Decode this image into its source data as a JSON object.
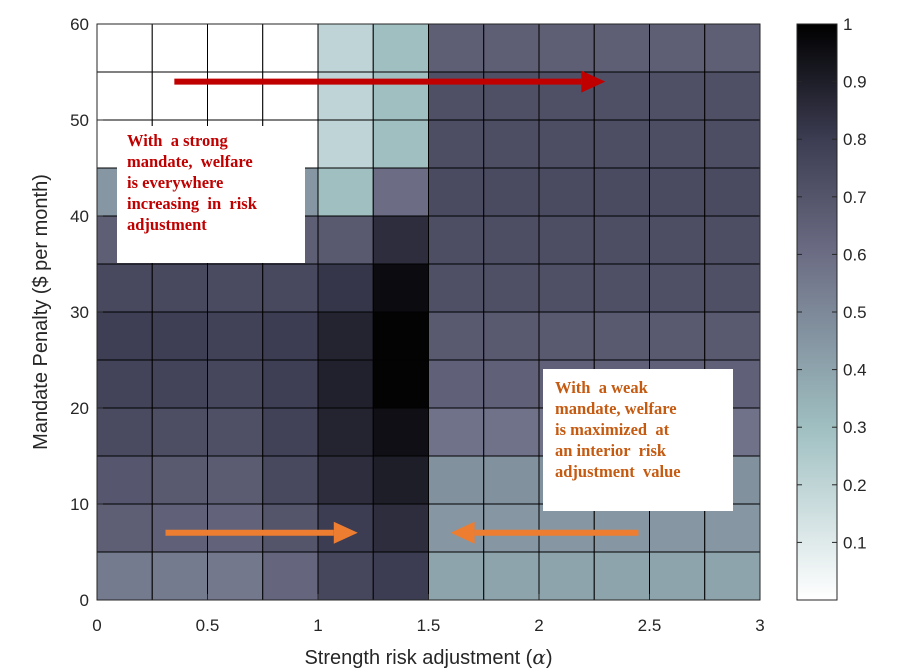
{
  "chart_data": {
    "type": "heatmap",
    "xlabel": "Strength risk adjustment (",
    "xlabel_symbol": "α",
    "xlabel_close": ")",
    "ylabel": "Mandate Penalty ($ per month)",
    "xlim": [
      0,
      3
    ],
    "ylim": [
      0,
      60
    ],
    "x_ticks": [
      "0",
      "0.5",
      "1",
      "1.5",
      "2",
      "2.5",
      "3"
    ],
    "y_ticks": [
      "0",
      "10",
      "20",
      "30",
      "40",
      "50",
      "60"
    ],
    "x_cell_edges": [
      0,
      0.25,
      0.5,
      0.75,
      1.0,
      1.25,
      1.5,
      1.75,
      2.0,
      2.25,
      2.5,
      2.75,
      3.0
    ],
    "y_cell_edges": [
      0,
      5,
      10,
      15,
      20,
      25,
      30,
      35,
      40,
      45,
      50,
      55,
      60
    ],
    "values_rows_top_to_bottom": [
      [
        0.0,
        0.0,
        0.0,
        0.0,
        0.2,
        0.3,
        0.66,
        0.66,
        0.66,
        0.66,
        0.66,
        0.66
      ],
      [
        0.0,
        0.0,
        0.0,
        0.0,
        0.2,
        0.3,
        0.72,
        0.72,
        0.72,
        0.72,
        0.72,
        0.72
      ],
      [
        0.0,
        0.0,
        0.0,
        0.0,
        0.2,
        0.3,
        0.73,
        0.73,
        0.73,
        0.73,
        0.73,
        0.73
      ],
      [
        0.45,
        0.45,
        0.45,
        0.45,
        0.3,
        0.6,
        0.74,
        0.74,
        0.74,
        0.74,
        0.74,
        0.74
      ],
      [
        0.66,
        0.66,
        0.66,
        0.66,
        0.68,
        0.85,
        0.73,
        0.73,
        0.73,
        0.73,
        0.73,
        0.73
      ],
      [
        0.75,
        0.75,
        0.74,
        0.75,
        0.82,
        0.96,
        0.72,
        0.72,
        0.72,
        0.72,
        0.72,
        0.72
      ],
      [
        0.79,
        0.79,
        0.78,
        0.8,
        0.88,
        0.99,
        0.68,
        0.68,
        0.68,
        0.68,
        0.68,
        0.68
      ],
      [
        0.77,
        0.77,
        0.76,
        0.79,
        0.89,
        0.99,
        0.65,
        0.65,
        0.65,
        0.65,
        0.65,
        0.65
      ],
      [
        0.74,
        0.73,
        0.72,
        0.78,
        0.88,
        0.95,
        0.58,
        0.58,
        0.58,
        0.58,
        0.58,
        0.58
      ],
      [
        0.69,
        0.68,
        0.67,
        0.75,
        0.85,
        0.9,
        0.47,
        0.47,
        0.47,
        0.47,
        0.47,
        0.47
      ],
      [
        0.66,
        0.65,
        0.64,
        0.7,
        0.8,
        0.85,
        0.45,
        0.45,
        0.45,
        0.45,
        0.45,
        0.45
      ],
      [
        0.55,
        0.55,
        0.56,
        0.63,
        0.76,
        0.8,
        0.4,
        0.4,
        0.4,
        0.4,
        0.4,
        0.4
      ]
    ],
    "colorbar": {
      "min": 0,
      "max": 1,
      "ticks": [
        "0.1",
        "0.2",
        "0.3",
        "0.4",
        "0.5",
        "0.6",
        "0.7",
        "0.8",
        "0.9",
        "1"
      ],
      "colorscale": [
        "#ffffff",
        "#9fbfc1",
        "#6c6d84",
        "#3c3c52",
        "#000000"
      ]
    },
    "grid": true,
    "annotations": [
      {
        "name": "note-strong",
        "lines": [
          "With  a strong",
          "mandate,  welfare",
          "is everywhere",
          "increasing  in  risk",
          "adjustment"
        ],
        "color": "#c00000"
      },
      {
        "name": "note-weak",
        "lines": [
          "With  a weak",
          "mandate, welfare",
          "is maximized  at",
          "an interior  risk",
          "adjustment  value"
        ],
        "color": "#c55a11"
      }
    ],
    "arrows": [
      {
        "name": "strong-arrow",
        "from": [
          0.35,
          54
        ],
        "to": [
          2.3,
          54
        ],
        "color": "#c00000"
      },
      {
        "name": "weak-arrow-left",
        "from": [
          0.31,
          7
        ],
        "to": [
          1.18,
          7
        ],
        "color": "#ed7d31"
      },
      {
        "name": "weak-arrow-right",
        "from": [
          2.45,
          7
        ],
        "to": [
          1.6,
          7
        ],
        "color": "#ed7d31"
      }
    ]
  }
}
